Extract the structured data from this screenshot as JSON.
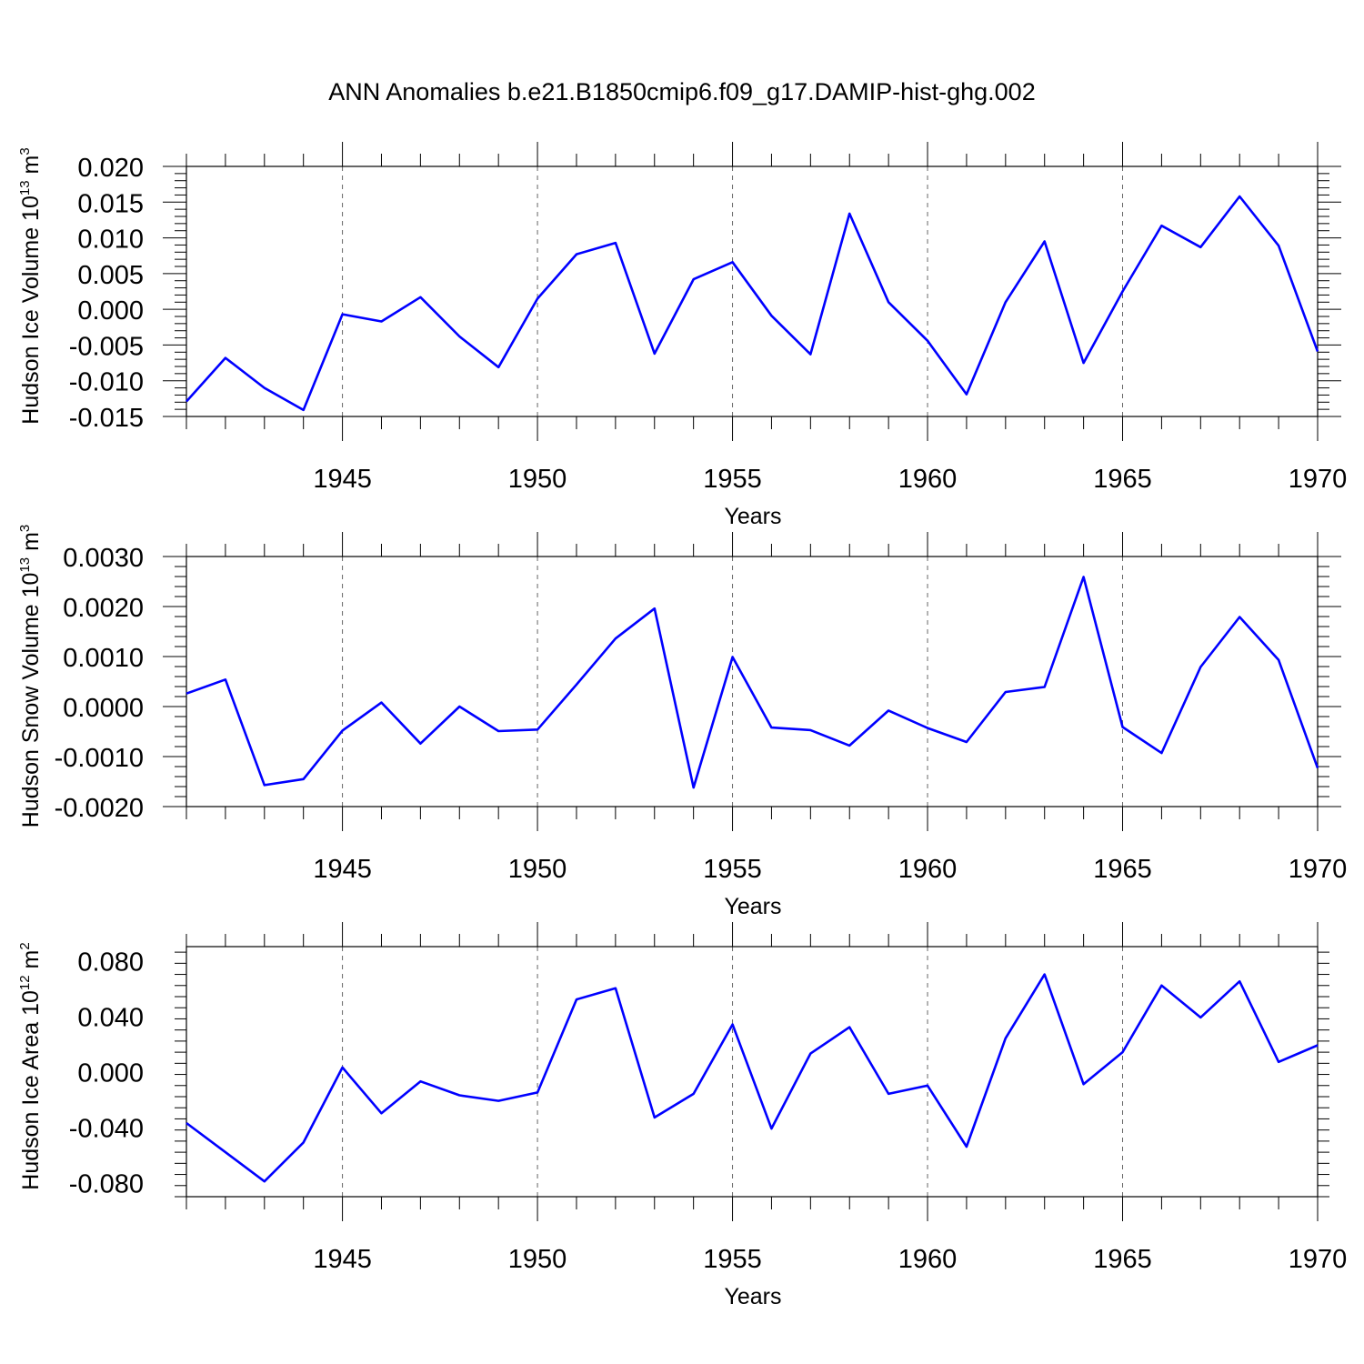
{
  "title": "ANN Anomalies b.e21.B1850cmip6.f09_g17.DAMIP-hist-ghg.002",
  "line_color": "#0000ff",
  "chart_data": [
    {
      "type": "line",
      "xlabel": "Years",
      "ylabel": "Hudson Ice Volume 10",
      "ylabel_exp": "13",
      "ylabel_unit": " m",
      "ylabel_unit_exp": "3",
      "xlim": [
        1941,
        1970
      ],
      "ylim": [
        -0.015,
        0.02
      ],
      "yticks": [
        -0.015,
        -0.01,
        -0.005,
        0.0,
        0.005,
        0.01,
        0.015,
        0.02
      ],
      "ytick_labels": [
        "-0.015",
        "-0.010",
        "-0.005",
        "0.000",
        "0.005",
        "0.010",
        "0.015",
        "0.020"
      ],
      "xticks": [
        1945,
        1950,
        1955,
        1960,
        1965,
        1970
      ],
      "xtick_labels": [
        "1945",
        "1950",
        "1955",
        "1960",
        "1965",
        "1970"
      ],
      "grid": "vertical dashed at major x ticks",
      "x": [
        1941,
        1942,
        1943,
        1944,
        1945,
        1946,
        1947,
        1948,
        1949,
        1950,
        1951,
        1952,
        1953,
        1954,
        1955,
        1956,
        1957,
        1958,
        1959,
        1960,
        1961,
        1962,
        1963,
        1964,
        1965,
        1966,
        1967,
        1968,
        1969,
        1970
      ],
      "values": [
        -0.0129,
        -0.0068,
        -0.011,
        -0.0141,
        -0.0007,
        -0.0017,
        0.0017,
        -0.0038,
        -0.0081,
        0.0015,
        0.0077,
        0.0093,
        -0.0062,
        0.0042,
        0.0066,
        -0.0009,
        -0.0063,
        0.0134,
        0.001,
        -0.0044,
        -0.0119,
        0.001,
        0.0095,
        -0.0075,
        0.0025,
        0.0117,
        0.0087,
        0.0158,
        0.0089,
        -0.0059
      ]
    },
    {
      "type": "line",
      "xlabel": "Years",
      "ylabel": "Hudson Snow Volume 10",
      "ylabel_exp": "13",
      "ylabel_unit": " m",
      "ylabel_unit_exp": "3",
      "xlim": [
        1941,
        1970
      ],
      "ylim": [
        -0.002,
        0.003
      ],
      "yticks": [
        -0.002,
        -0.001,
        0.0,
        0.001,
        0.002,
        0.003
      ],
      "ytick_labels": [
        "-0.0020",
        "-0.0010",
        "0.0000",
        "0.0010",
        "0.0020",
        "0.0030"
      ],
      "xticks": [
        1945,
        1950,
        1955,
        1960,
        1965,
        1970
      ],
      "xtick_labels": [
        "1945",
        "1950",
        "1955",
        "1960",
        "1965",
        "1970"
      ],
      "grid": "vertical dashed at major x ticks",
      "x": [
        1941,
        1942,
        1943,
        1944,
        1945,
        1946,
        1947,
        1948,
        1949,
        1950,
        1951,
        1952,
        1953,
        1954,
        1955,
        1956,
        1957,
        1958,
        1959,
        1960,
        1961,
        1962,
        1963,
        1964,
        1965,
        1966,
        1967,
        1968,
        1969,
        1970
      ],
      "values": [
        0.00026,
        0.00054,
        -0.00157,
        -0.00145,
        -0.00048,
        8e-05,
        -0.00074,
        0.0,
        -0.00049,
        -0.00046,
        0.00044,
        0.00136,
        0.00196,
        -0.00162,
        0.00099,
        -0.00042,
        -0.00047,
        -0.00078,
        -8e-05,
        -0.00043,
        -0.00071,
        0.00029,
        0.00039,
        0.00259,
        -0.00041,
        -0.00093,
        0.00079,
        0.00179,
        0.00093,
        -0.00123
      ]
    },
    {
      "type": "line",
      "xlabel": "Years",
      "ylabel": "Hudson Ice Area 10",
      "ylabel_exp": "12",
      "ylabel_unit": " m",
      "ylabel_unit_exp": "2",
      "xlim": [
        1941,
        1970
      ],
      "ylim": [
        -0.09,
        0.09
      ],
      "yticks": [
        -0.08,
        -0.04,
        0.0,
        0.04,
        0.08
      ],
      "ytick_labels": [
        "-0.080",
        "-0.040",
        "0.000",
        "0.040",
        "0.080"
      ],
      "xticks": [
        1945,
        1950,
        1955,
        1960,
        1965,
        1970
      ],
      "xtick_labels": [
        "1945",
        "1950",
        "1955",
        "1960",
        "1965",
        "1970"
      ],
      "grid": "vertical dashed at major x ticks",
      "x": [
        1941,
        1942,
        1943,
        1944,
        1945,
        1946,
        1947,
        1948,
        1949,
        1950,
        1951,
        1952,
        1953,
        1954,
        1955,
        1956,
        1957,
        1958,
        1959,
        1960,
        1961,
        1962,
        1963,
        1964,
        1965,
        1966,
        1967,
        1968,
        1969,
        1970
      ],
      "values": [
        -0.037,
        -0.058,
        -0.079,
        -0.051,
        0.003,
        -0.03,
        -0.007,
        -0.017,
        -0.021,
        -0.015,
        0.052,
        0.06,
        -0.033,
        -0.016,
        0.034,
        -0.041,
        0.013,
        0.032,
        -0.016,
        -0.01,
        -0.054,
        0.024,
        0.07,
        -0.009,
        0.014,
        0.062,
        0.039,
        0.065,
        0.007,
        0.019
      ]
    }
  ]
}
